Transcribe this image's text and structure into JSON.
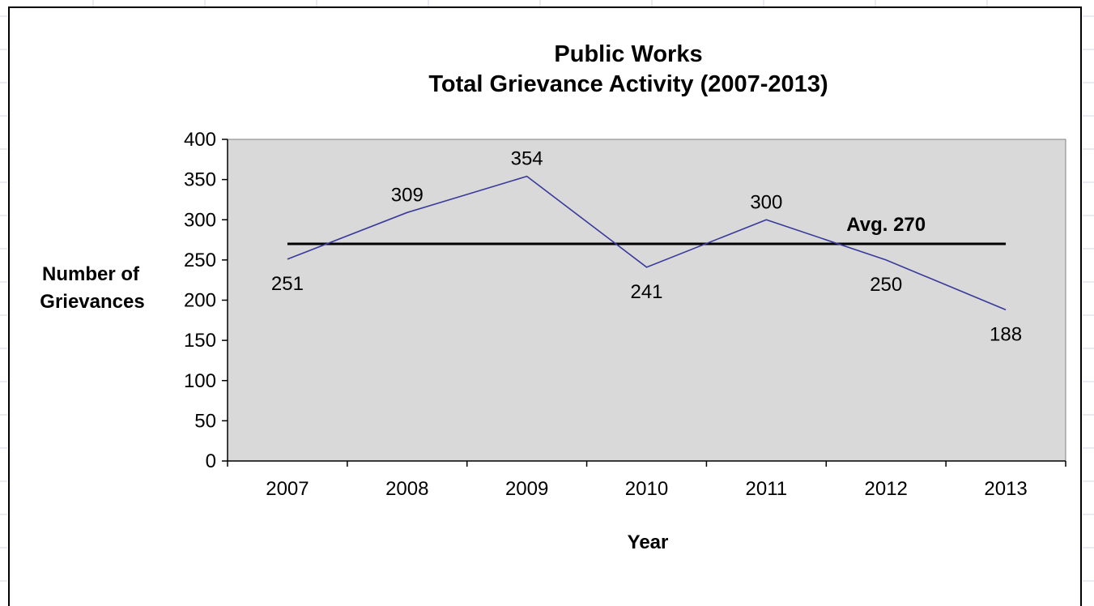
{
  "chart_data": {
    "type": "line",
    "title": [
      "Public Works",
      "Total Grievance Activity  (2007-2013)"
    ],
    "xlabel": "Year",
    "ylabel": [
      "Number of",
      "Grievances"
    ],
    "categories": [
      "2007",
      "2008",
      "2009",
      "2010",
      "2011",
      "2012",
      "2013"
    ],
    "series": [
      {
        "values": [
          251,
          309,
          354,
          241,
          300,
          250,
          188
        ],
        "color": "#3a3a9c"
      }
    ],
    "data_labels": [
      "251",
      "309",
      "354",
      "241",
      "300",
      "250",
      "188"
    ],
    "average": {
      "value": 270,
      "label": "Avg. 270",
      "color": "#000000"
    },
    "ylim": [
      0,
      400
    ],
    "yticks": [
      0,
      50,
      100,
      150,
      200,
      250,
      300,
      350,
      400
    ],
    "ytick_labels": [
      "0",
      "50",
      "100",
      "150",
      "200",
      "250",
      "300",
      "350",
      "400"
    ],
    "grid": false,
    "legend": "none",
    "plot_background": "#d9d9d9"
  }
}
